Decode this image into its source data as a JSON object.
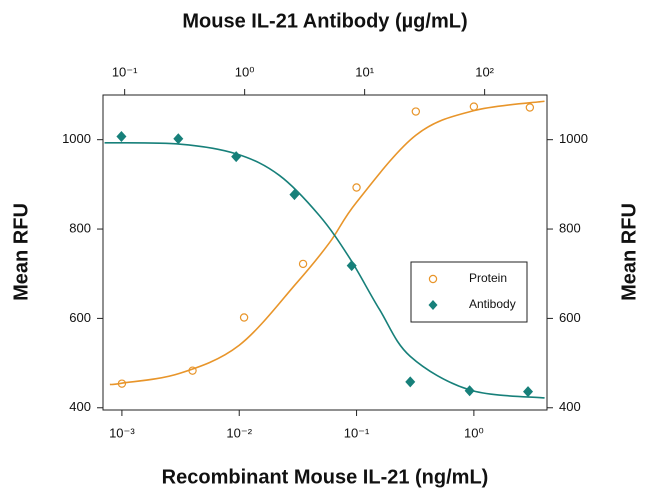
{
  "chart_data": {
    "type": "scatter",
    "title": "Mouse IL-21 Antibody (µg/mL)",
    "xlabel": "Recombinant Mouse IL-21 (ng/mL)",
    "ylabel": "Mean RFU",
    "y2label": "Mean RFU",
    "xscale": "log",
    "x2scale": "log",
    "xlim": [
      0.00069,
      4.2
    ],
    "xticks": [
      {
        "value": 0.001,
        "label": "10⁻³"
      },
      {
        "value": 0.01,
        "label": "10⁻²"
      },
      {
        "value": 0.1,
        "label": "10⁻¹"
      },
      {
        "value": 1,
        "label": "10⁰"
      }
    ],
    "x2lim": [
      0.066,
      331
    ],
    "x2ticks": [
      {
        "value": 0.1,
        "label": "10⁻¹"
      },
      {
        "value": 1,
        "label": "10⁰"
      },
      {
        "value": 10,
        "label": "10¹"
      },
      {
        "value": 100,
        "label": "10²"
      }
    ],
    "ylim": [
      395,
      1100
    ],
    "yticks": [
      400,
      600,
      800,
      1000
    ],
    "y2lim": [
      395,
      1100
    ],
    "y2ticks": [
      400,
      600,
      800,
      1000
    ],
    "legend": "right",
    "series": [
      {
        "name": "Protein",
        "color": "#e8952a",
        "marker": "circle",
        "x": [
          0.001,
          0.004,
          0.011,
          0.035,
          0.1,
          0.32,
          1.0,
          3.0
        ],
        "values": [
          454,
          483,
          602,
          722,
          893,
          1063,
          1074,
          1072
        ],
        "fit": {
          "x": [
            0.00079,
            0.001,
            0.0031,
            0.01,
            0.031,
            0.059,
            0.1,
            0.32,
            1.0,
            4.0
          ],
          "values": [
            452,
            455,
            477,
            540,
            680,
            770,
            860,
            1010,
            1065,
            1086
          ]
        }
      },
      {
        "name": "Antibody",
        "color": "#17807a",
        "marker": "diamond",
        "axis": "x2",
        "x": [
          0.094,
          0.28,
          0.85,
          2.6,
          7.8,
          24,
          75,
          230
        ],
        "values": [
          1007,
          1002,
          962,
          877,
          718,
          458,
          438,
          436
        ],
        "fit": {
          "x": [
            0.068,
            0.29,
            0.86,
            1.95,
            4.2,
            7.5,
            13.3,
            24,
            75,
            316
          ],
          "values": [
            993,
            990,
            968,
            920,
            830,
            735,
            620,
            515,
            440,
            422
          ]
        }
      }
    ]
  }
}
